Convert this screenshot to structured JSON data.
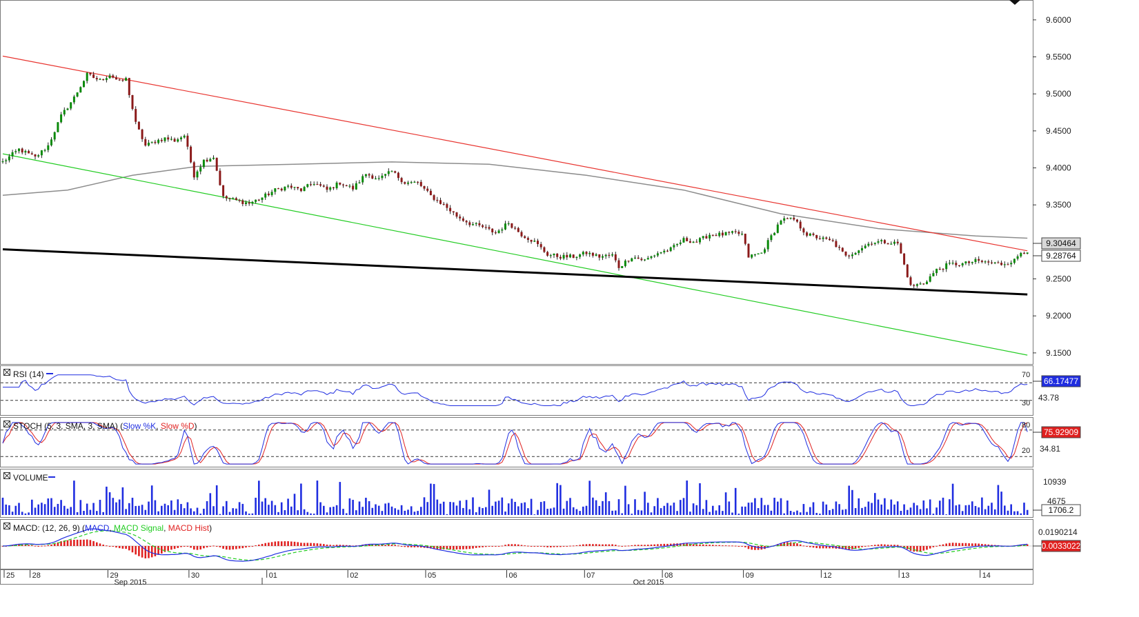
{
  "colors": {
    "up": "#0a8a0a",
    "down": "#8b1a1a",
    "red_trend": "#e8342f",
    "green_trend": "#22cc22",
    "black_trend": "#000000",
    "ma": "#8c8c8c",
    "rsi": "#1f2de0",
    "stoch_k": "#1f2de0",
    "stoch_d": "#e0201f",
    "volume": "#1f2de0",
    "macd": "#1f2de0",
    "macd_signal": "#22cc22",
    "macd_hist": "#e0201f",
    "tag_blue": "#1f2de0",
    "tag_red": "#e0201f"
  },
  "price_panel": {
    "price_labels": [
      "9.6000",
      "9.5500",
      "9.5000",
      "9.4500",
      "9.4000",
      "9.3500",
      "9.2500",
      "9.2000",
      "9.1500"
    ],
    "price_values": [
      9.6,
      9.55,
      9.5,
      9.45,
      9.4,
      9.35,
      9.25,
      9.2,
      9.15
    ],
    "tag_ma": "9.30464",
    "tag_close": "9.28764"
  },
  "rsi_panel": {
    "title": "RSI (14)",
    "level_high": "70",
    "level_low": "30",
    "mid_label": "43.78",
    "value_tag": "66.17477"
  },
  "stoch_panel": {
    "title_prefix": "STOCH (5, 3, SMA, 3, SMA) (",
    "title_k": "Slow %K",
    "title_sep": ", ",
    "title_d": "Slow %D",
    "title_suffix": ")",
    "level_high": "80",
    "level_low": "20",
    "mid_label": "34.81",
    "value_tag": "75.92909"
  },
  "volume_panel": {
    "title": "VOLUME",
    "label_high": "10939",
    "label_low": "4675",
    "value_tag": "1706.2"
  },
  "macd_panel": {
    "title_prefix": "MACD: (12, 26, 9) (",
    "title_macd": "MACD",
    "title_signal": "MACD Signal",
    "title_hist": "MACD Hist",
    "title_suffix": ")",
    "label_top": "0.0190214",
    "value_tag": "0.0033022"
  },
  "x_axis": {
    "day_labels": [
      "25",
      "28",
      "29",
      "30",
      "01",
      "02",
      "05",
      "06",
      "07",
      "08",
      "09",
      "12",
      "13",
      "14"
    ],
    "month_labels": [
      "Sep 2015",
      "Oct 2015"
    ]
  },
  "chart_data": {
    "type": "candlestick",
    "instrument": "",
    "x_labels": [
      "25",
      "28",
      "29",
      "30",
      "01",
      "02",
      "05",
      "06",
      "07",
      "08",
      "09",
      "12",
      "13",
      "14"
    ],
    "months": [
      "Sep 2015",
      "Oct 2015"
    ],
    "y_range": [
      9.135,
      9.625
    ],
    "ohlc_path": [
      [
        0,
        9.408
      ],
      [
        5,
        9.425
      ],
      [
        10,
        9.414
      ],
      [
        14,
        9.43
      ],
      [
        18,
        9.47
      ],
      [
        22,
        9.495
      ],
      [
        26,
        9.526
      ],
      [
        30,
        9.518
      ],
      [
        33,
        9.526
      ],
      [
        36,
        9.516
      ],
      [
        38,
        9.52
      ],
      [
        41,
        9.46
      ],
      [
        44,
        9.43
      ],
      [
        47,
        9.436
      ],
      [
        50,
        9.44
      ],
      [
        53,
        9.437
      ],
      [
        56,
        9.444
      ],
      [
        59,
        9.39
      ],
      [
        62,
        9.41
      ],
      [
        65,
        9.415
      ],
      [
        68,
        9.36
      ],
      [
        72,
        9.356
      ],
      [
        76,
        9.352
      ],
      [
        80,
        9.36
      ],
      [
        84,
        9.37
      ],
      [
        88,
        9.375
      ],
      [
        92,
        9.37
      ],
      [
        96,
        9.38
      ],
      [
        100,
        9.37
      ],
      [
        104,
        9.38
      ],
      [
        108,
        9.372
      ],
      [
        112,
        9.392
      ],
      [
        116,
        9.385
      ],
      [
        120,
        9.395
      ],
      [
        124,
        9.38
      ],
      [
        128,
        9.38
      ],
      [
        132,
        9.362
      ],
      [
        136,
        9.35
      ],
      [
        140,
        9.335
      ],
      [
        144,
        9.325
      ],
      [
        148,
        9.32
      ],
      [
        152,
        9.312
      ],
      [
        156,
        9.326
      ],
      [
        160,
        9.31
      ],
      [
        164,
        9.3
      ],
      [
        168,
        9.283
      ],
      [
        172,
        9.28
      ],
      [
        176,
        9.28
      ],
      [
        180,
        9.285
      ],
      [
        184,
        9.28
      ],
      [
        188,
        9.282
      ],
      [
        190,
        9.266
      ],
      [
        194,
        9.28
      ],
      [
        198,
        9.275
      ],
      [
        202,
        9.285
      ],
      [
        206,
        9.29
      ],
      [
        210,
        9.303
      ],
      [
        214,
        9.3
      ],
      [
        218,
        9.31
      ],
      [
        222,
        9.31
      ],
      [
        226,
        9.312
      ],
      [
        228,
        9.31
      ],
      [
        230,
        9.28
      ],
      [
        234,
        9.285
      ],
      [
        236,
        9.3
      ],
      [
        240,
        9.33
      ],
      [
        244,
        9.33
      ],
      [
        248,
        9.31
      ],
      [
        252,
        9.305
      ],
      [
        256,
        9.3
      ],
      [
        260,
        9.28
      ],
      [
        264,
        9.29
      ],
      [
        268,
        9.3
      ],
      [
        272,
        9.3
      ],
      [
        276,
        9.298
      ],
      [
        280,
        9.24
      ],
      [
        284,
        9.244
      ],
      [
        288,
        9.262
      ],
      [
        292,
        9.27
      ],
      [
        296,
        9.27
      ],
      [
        300,
        9.274
      ],
      [
        304,
        9.272
      ],
      [
        308,
        9.27
      ],
      [
        312,
        9.275
      ],
      [
        314,
        9.286
      ],
      [
        316,
        9.288
      ]
    ],
    "series": [
      {
        "name": "MA",
        "type": "line",
        "points": [
          [
            0,
            9.363
          ],
          [
            20,
            9.37
          ],
          [
            40,
            9.39
          ],
          [
            60,
            9.402
          ],
          [
            90,
            9.405
          ],
          [
            120,
            9.408
          ],
          [
            150,
            9.405
          ],
          [
            180,
            9.39
          ],
          [
            210,
            9.37
          ],
          [
            240,
            9.338
          ],
          [
            270,
            9.318
          ],
          [
            300,
            9.308
          ],
          [
            316,
            9.305
          ]
        ]
      },
      {
        "name": "upper trendline",
        "type": "line",
        "points": [
          [
            0,
            9.551
          ],
          [
            316,
            9.288
          ]
        ]
      },
      {
        "name": "lower trendline",
        "type": "line",
        "points": [
          [
            0,
            9.419
          ],
          [
            316,
            9.147
          ]
        ]
      },
      {
        "name": "support trendline",
        "type": "line",
        "points": [
          [
            0,
            9.29
          ],
          [
            316,
            9.229
          ]
        ]
      }
    ],
    "rsi": {
      "levels": [
        70,
        30
      ],
      "last": 66.17477
    },
    "stoch": {
      "levels": [
        80,
        20
      ],
      "last": 75.92909
    },
    "volume": {
      "last": 1706.2,
      "labels": [
        10939,
        4675
      ]
    },
    "macd": {
      "label": 0.0190214,
      "last": 0.0033022
    }
  }
}
